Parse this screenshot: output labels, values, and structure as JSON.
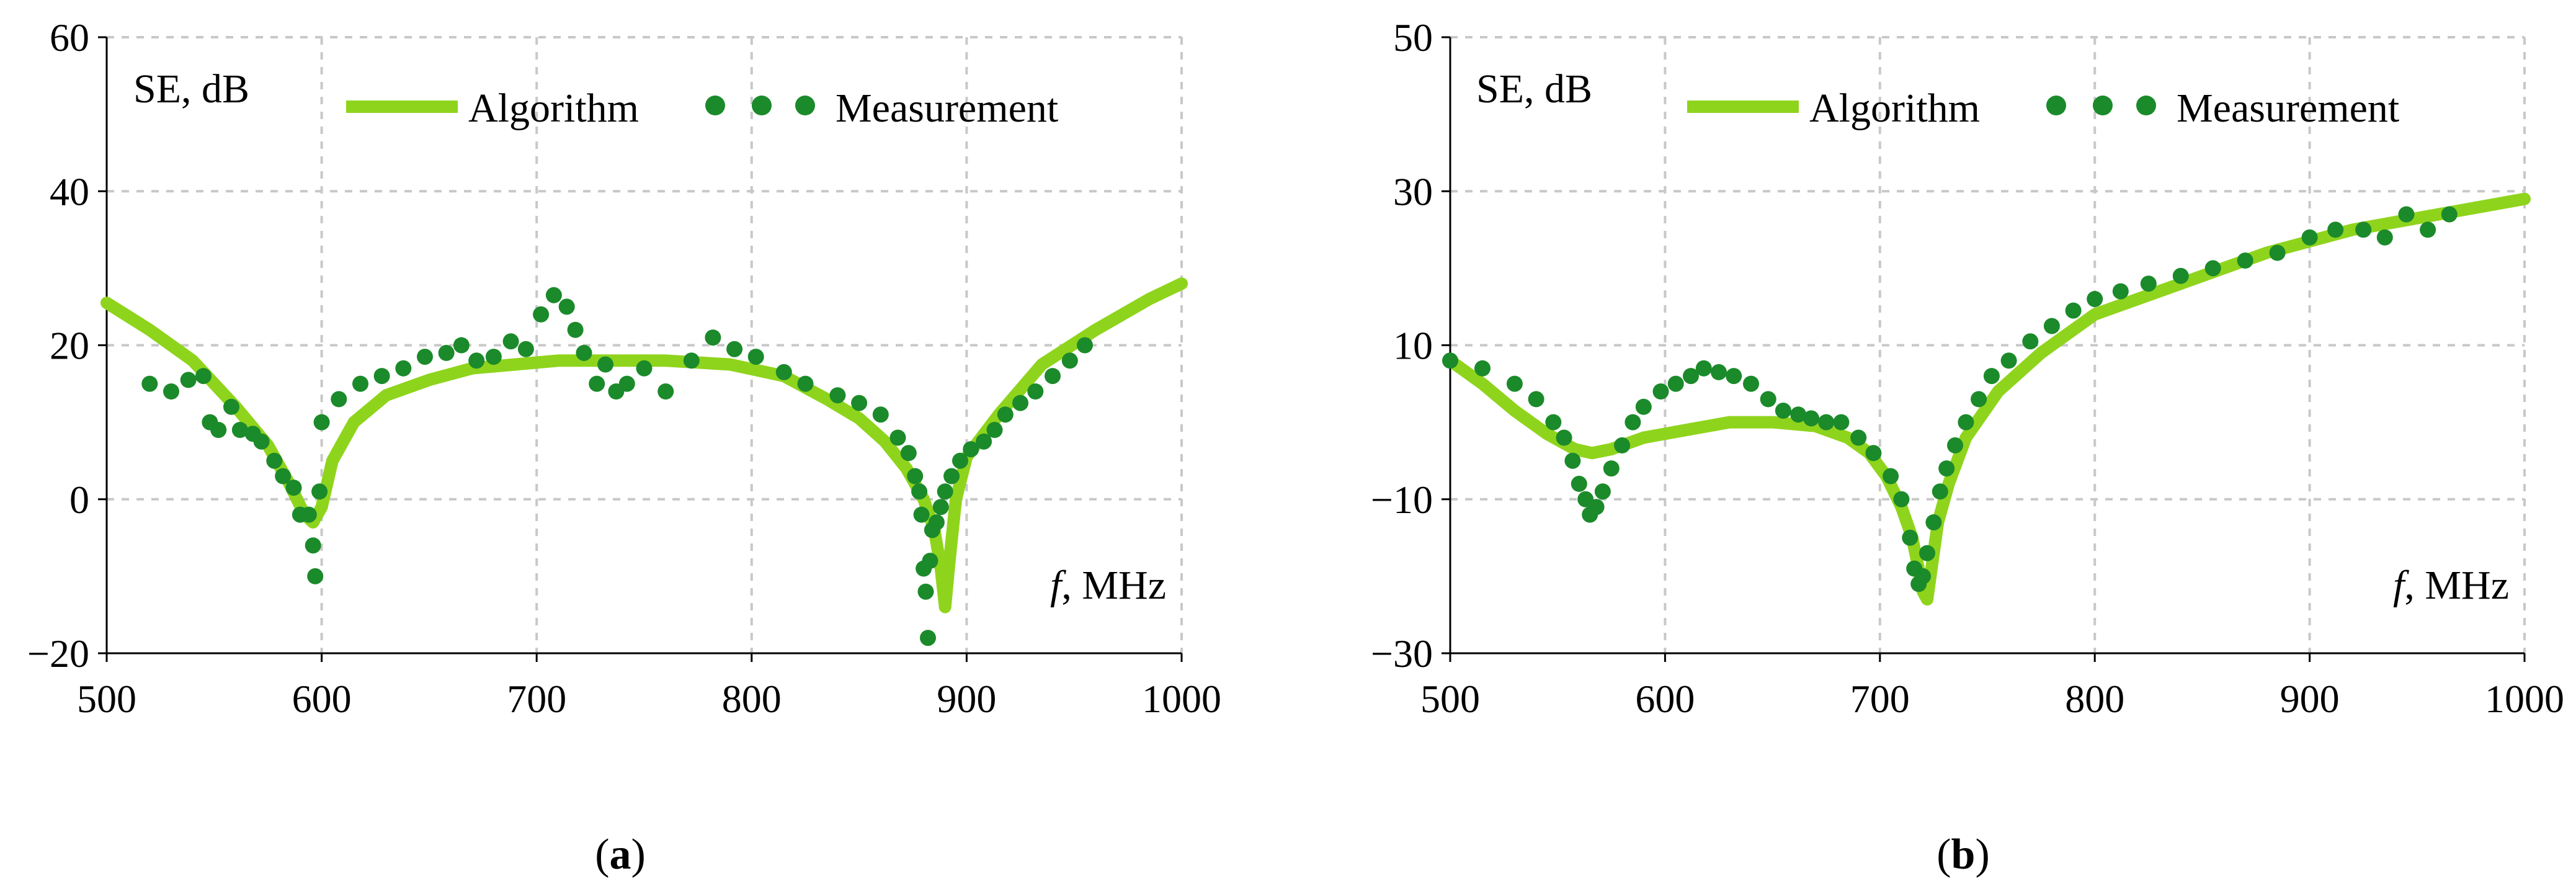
{
  "colors": {
    "algorithm": "#8fd41c",
    "measurement": "#1b8a2a",
    "grid": "#c8c8c8"
  },
  "chart_data": [
    {
      "type": "line",
      "caption_letter": "a",
      "ylabel": "SE, dB",
      "xlabel_italic": "f",
      "xlabel_rest": ", MHz",
      "xlim": [
        500,
        1000
      ],
      "ylim": [
        -20,
        60
      ],
      "xticks": [
        "500",
        "600",
        "700",
        "800",
        "900",
        "1000"
      ],
      "yticks": [
        "−20",
        "0",
        "20",
        "40",
        "60"
      ],
      "legend": [
        "Algorithm",
        "Measurement"
      ],
      "series": [
        {
          "name": "Algorithm",
          "style": "line",
          "x": [
            500,
            520,
            540,
            560,
            575,
            585,
            592,
            596,
            600,
            605,
            615,
            630,
            650,
            670,
            690,
            710,
            730,
            760,
            790,
            815,
            835,
            850,
            862,
            872,
            880,
            885,
            888,
            890,
            892,
            895,
            900,
            915,
            935,
            960,
            985,
            1000
          ],
          "y": [
            25.5,
            22,
            18,
            12,
            7,
            2,
            -2,
            -3,
            -1,
            5,
            10,
            13.5,
            15.5,
            17,
            17.5,
            18,
            18,
            18,
            17.5,
            16,
            13,
            10.5,
            7.5,
            4,
            0,
            -4,
            -9,
            -14,
            -8,
            0,
            5.5,
            11,
            17.5,
            22,
            26,
            28
          ]
        },
        {
          "name": "Measurement",
          "style": "dots",
          "x": [
            520,
            530,
            538,
            545,
            548,
            552,
            558,
            562,
            568,
            572,
            578,
            582,
            587,
            590,
            594,
            596,
            597,
            599,
            600,
            608,
            618,
            628,
            638,
            648,
            658,
            665,
            672,
            680,
            688,
            695,
            702,
            708,
            714,
            718,
            722,
            728,
            732,
            737,
            742,
            750,
            760,
            772,
            782,
            792,
            802,
            815,
            825,
            840,
            850,
            860,
            868,
            873,
            876,
            878,
            879,
            880,
            881,
            882,
            883,
            884,
            886,
            888,
            890,
            893,
            897,
            902,
            908,
            913,
            918,
            925,
            932,
            940,
            948,
            955
          ],
          "y": [
            15,
            14,
            15.5,
            16,
            10,
            9,
            12,
            9,
            8.5,
            7.5,
            5,
            3,
            1.5,
            -2,
            -2,
            -6,
            -10,
            1,
            10,
            13,
            15,
            16,
            17,
            18.5,
            19,
            20,
            18,
            18.5,
            20.5,
            19.5,
            24,
            26.5,
            25,
            22,
            19,
            15,
            17.5,
            14,
            15,
            17,
            14,
            18,
            21,
            19.5,
            18.5,
            16.5,
            15,
            13.5,
            12.5,
            11,
            8,
            6,
            3,
            1,
            -2,
            -9,
            -12,
            -18,
            -8,
            -4,
            -3,
            -1,
            1,
            3,
            5,
            6.5,
            7.5,
            9,
            11,
            12.5,
            14,
            16,
            18,
            20
          ]
        }
      ]
    },
    {
      "type": "line",
      "caption_letter": "b",
      "ylabel": "SE, dB",
      "xlabel_italic": "f",
      "xlabel_rest": ", MHz",
      "xlim": [
        500,
        1000
      ],
      "ylim": [
        -30,
        50
      ],
      "xticks": [
        "500",
        "600",
        "700",
        "800",
        "900",
        "1000"
      ],
      "yticks": [
        "−30",
        "−10",
        "10",
        "30",
        "50"
      ],
      "legend": [
        "Algorithm",
        "Measurement"
      ],
      "series": [
        {
          "name": "Algorithm",
          "style": "line",
          "x": [
            500,
            515,
            530,
            545,
            558,
            566,
            575,
            590,
            610,
            630,
            650,
            670,
            685,
            695,
            703,
            710,
            715,
            718,
            720,
            722,
            724,
            727,
            732,
            740,
            755,
            775,
            800,
            840,
            880,
            920,
            960,
            1000
          ],
          "y": [
            8,
            5,
            1.5,
            -1.5,
            -3.5,
            -4,
            -3.5,
            -2,
            -1,
            0,
            0,
            -0.5,
            -2,
            -4,
            -7,
            -11,
            -15,
            -19,
            -22,
            -23,
            -19,
            -13,
            -8,
            -2,
            4,
            9,
            14,
            18,
            22,
            25,
            27,
            29
          ]
        },
        {
          "name": "Measurement",
          "style": "dots",
          "x": [
            500,
            515,
            530,
            540,
            548,
            553,
            557,
            560,
            563,
            565,
            568,
            571,
            575,
            580,
            585,
            590,
            598,
            605,
            612,
            618,
            625,
            632,
            640,
            648,
            655,
            662,
            668,
            675,
            682,
            690,
            697,
            705,
            710,
            714,
            716,
            718,
            720,
            722,
            725,
            728,
            731,
            735,
            740,
            746,
            752,
            760,
            770,
            780,
            790,
            800,
            812,
            825,
            840,
            855,
            870,
            885,
            900,
            912,
            925,
            935,
            945,
            955,
            965
          ],
          "y": [
            8,
            7,
            5,
            3,
            0,
            -2,
            -5,
            -8,
            -10,
            -12,
            -11,
            -9,
            -6,
            -3,
            0,
            2,
            4,
            5,
            6,
            7,
            6.5,
            6,
            5,
            3,
            1.5,
            1,
            0.5,
            0,
            0,
            -2,
            -4,
            -7,
            -10,
            -15,
            -19,
            -21,
            -20,
            -17,
            -13,
            -9,
            -6,
            -3,
            0,
            3,
            6,
            8,
            10.5,
            12.5,
            14.5,
            16,
            17,
            18,
            19,
            20,
            21,
            22,
            24,
            25,
            25,
            24,
            27,
            25,
            27
          ]
        }
      ]
    }
  ]
}
